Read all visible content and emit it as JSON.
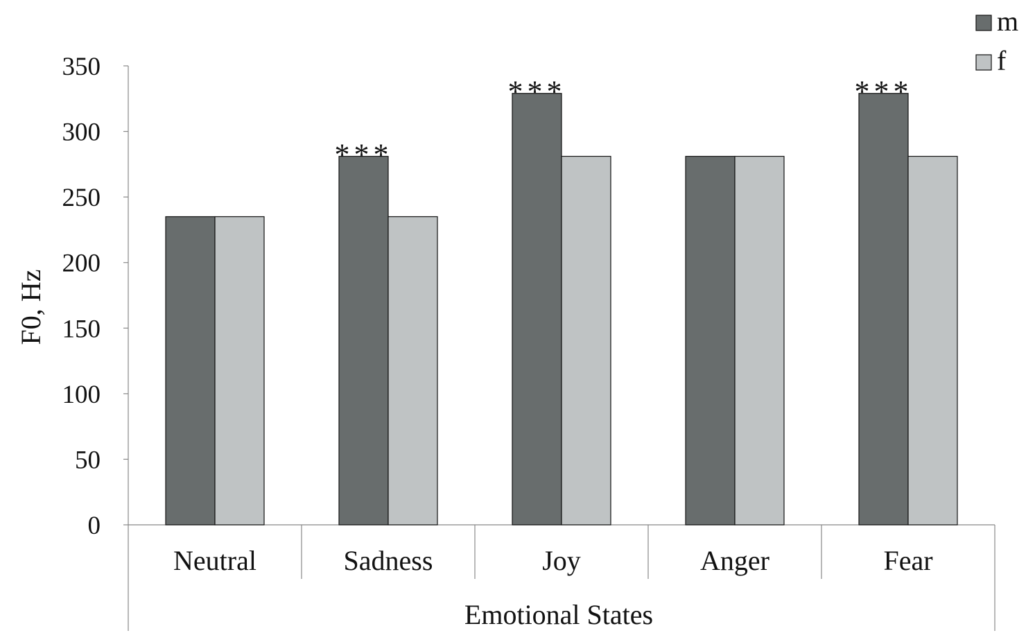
{
  "chart_data": {
    "type": "bar",
    "title": "",
    "xlabel": "Emotional States",
    "ylabel": "F0, Hz",
    "ylim": [
      0,
      350
    ],
    "yticks": [
      0,
      50,
      100,
      150,
      200,
      250,
      300,
      350
    ],
    "categories": [
      "Neutral",
      "Sadness",
      "Joy",
      "Anger",
      "Fear"
    ],
    "series": [
      {
        "name": "m",
        "color": "#686d6d",
        "values": [
          235,
          281,
          329,
          281,
          329
        ]
      },
      {
        "name": "f",
        "color": "#bfc3c4",
        "values": [
          235,
          235,
          281,
          281,
          281
        ]
      }
    ],
    "annotations": [
      "",
      "***",
      "***",
      "",
      "***"
    ],
    "legend": "top-right",
    "grid": false
  }
}
